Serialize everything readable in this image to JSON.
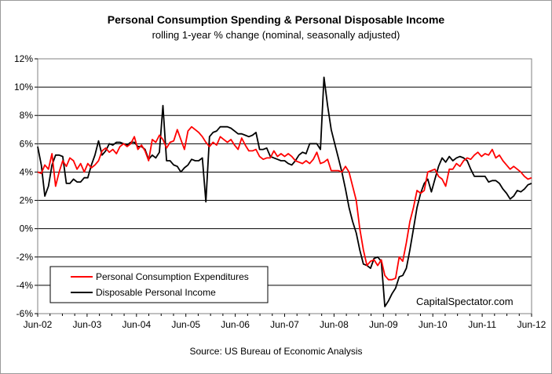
{
  "chart_data": {
    "type": "line",
    "title": "Personal Consumption Spending & Personal Disposable Income",
    "subtitle": "rolling 1-year % change (nominal, seasonally adjusted)",
    "source": "Source: US Bureau of Economic Analysis",
    "watermark": "CapitalSpectator.com",
    "xlabel": "",
    "ylabel": "",
    "ylim": [
      -6,
      12
    ],
    "y_ticks": [
      "12%",
      "10%",
      "8%",
      "6%",
      "4%",
      "2%",
      "0%",
      "-2%",
      "-4%",
      "-6%"
    ],
    "y_tick_values": [
      12,
      10,
      8,
      6,
      4,
      2,
      0,
      -2,
      -4,
      -6
    ],
    "x_tick_labels": [
      "Jun-02",
      "Jun-03",
      "Jun-04",
      "Jun-05",
      "Jun-06",
      "Jun-07",
      "Jun-08",
      "Jun-09",
      "Jun-10",
      "Jun-11",
      "Jun-12"
    ],
    "x_start": "Jun-02",
    "x_end": "Jun-12",
    "grid": true,
    "legend_position": "bottom-left",
    "series": [
      {
        "name": "Personal Consumption Expenditures",
        "color": "#ff0000",
        "values": [
          4.0,
          3.9,
          4.5,
          4.2,
          5.3,
          3.0,
          4.0,
          4.8,
          4.4,
          5.0,
          4.8,
          4.2,
          4.6,
          4.0,
          4.6,
          4.3,
          4.5,
          4.8,
          5.5,
          5.7,
          5.4,
          5.6,
          5.3,
          5.8,
          6.0,
          5.8,
          6.0,
          6.5,
          5.6,
          5.9,
          5.5,
          4.8,
          6.3,
          6.1,
          6.6,
          6.3,
          5.7,
          6.1,
          6.2,
          7.0,
          6.3,
          5.6,
          6.9,
          7.2,
          7.0,
          6.8,
          6.5,
          6.1,
          5.8,
          6.1,
          5.9,
          6.5,
          6.3,
          6.1,
          6.3,
          5.9,
          5.6,
          6.4,
          5.9,
          5.5,
          5.5,
          5.6,
          5.1,
          4.9,
          5.0,
          5.0,
          5.5,
          5.1,
          5.3,
          5.1,
          5.3,
          5.1,
          4.8,
          4.7,
          4.6,
          4.8,
          4.6,
          4.9,
          5.4,
          4.6,
          4.7,
          4.9,
          4.1,
          4.1,
          4.1,
          4.0,
          4.4,
          4.0,
          3.0,
          2.0,
          0.0,
          -1.5,
          -2.6,
          -2.3,
          -2.2,
          -2.6,
          -2.2,
          -3.3,
          -3.6,
          -3.6,
          -3.5,
          -2.0,
          -2.3,
          -1.0,
          0.5,
          1.5,
          2.7,
          2.5,
          2.7,
          4.0,
          4.1,
          4.2,
          3.7,
          3.5,
          3.0,
          4.2,
          4.2,
          4.6,
          4.4,
          4.8,
          5.0,
          4.9,
          5.2,
          5.4,
          5.1,
          5.3,
          5.2,
          5.6,
          5.0,
          5.2,
          4.8,
          4.5,
          4.2,
          4.4,
          4.2,
          4.0,
          3.7,
          3.5,
          3.6
        ]
      },
      {
        "name": "Disposable Personal Income",
        "color": "#000000",
        "values": [
          5.8,
          4.5,
          2.3,
          3.0,
          4.5,
          5.2,
          5.2,
          5.1,
          3.2,
          3.2,
          3.5,
          3.3,
          3.3,
          3.6,
          3.6,
          4.5,
          5.2,
          6.2,
          5.2,
          5.5,
          6.0,
          5.9,
          6.1,
          6.1,
          6.0,
          5.9,
          6.1,
          6.1,
          5.8,
          5.8,
          5.6,
          4.9,
          5.2,
          5.0,
          5.4,
          8.7,
          4.8,
          4.8,
          4.5,
          4.4,
          4.0,
          4.3,
          4.5,
          4.9,
          4.8,
          4.8,
          5.0,
          1.9,
          6.5,
          6.8,
          6.9,
          7.2,
          7.2,
          7.2,
          7.1,
          6.9,
          6.7,
          6.7,
          6.6,
          6.5,
          6.6,
          6.8,
          5.6,
          5.6,
          5.7,
          5.1,
          5.0,
          4.9,
          4.8,
          4.8,
          4.6,
          4.5,
          4.8,
          5.2,
          5.4,
          5.3,
          6.0,
          6.0,
          6.0,
          5.6,
          10.7,
          8.7,
          7.0,
          6.0,
          5.0,
          4.0,
          2.8,
          1.5,
          0.5,
          -0.3,
          -1.5,
          -2.5,
          -2.6,
          -2.8,
          -2.1,
          -2.0,
          -2.3,
          -5.5,
          -5.1,
          -4.6,
          -4.2,
          -3.4,
          -3.3,
          -2.8,
          -1.5,
          0.0,
          1.5,
          2.5,
          3.2,
          3.5,
          2.6,
          3.5,
          4.4,
          5.0,
          4.7,
          5.1,
          4.8,
          5.0,
          5.1,
          5.0,
          4.8,
          4.2,
          3.7,
          3.7,
          3.7,
          3.7,
          3.3,
          3.4,
          3.4,
          3.2,
          2.8,
          2.5,
          2.1,
          2.3,
          2.7,
          2.6,
          2.8,
          3.1,
          3.2
        ]
      }
    ]
  }
}
